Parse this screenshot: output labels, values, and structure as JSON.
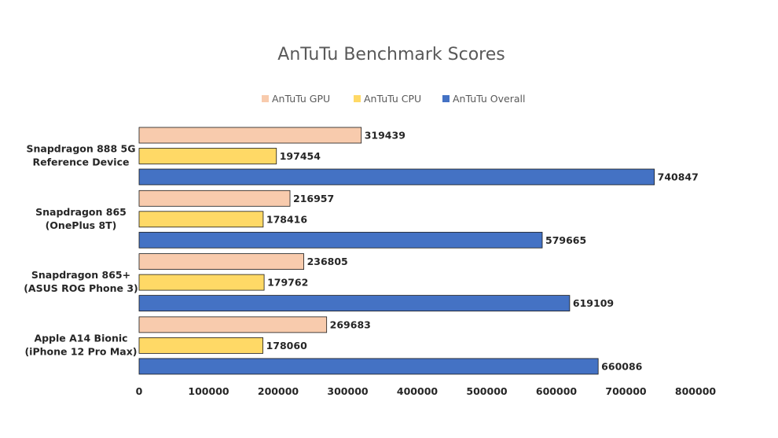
{
  "chart_data": {
    "type": "bar",
    "orientation": "horizontal",
    "title": "AnTuTu Benchmark Scores",
    "xlabel": "",
    "ylabel": "",
    "xlim": [
      0,
      800000
    ],
    "x_ticks": [
      "0",
      "100000",
      "200000",
      "300000",
      "400000",
      "500000",
      "600000",
      "700000",
      "800000"
    ],
    "grid": false,
    "legend_position": "top",
    "categories": [
      [
        "Snapdragon 888 5G",
        "Reference Device"
      ],
      [
        "Snapdragon 865",
        "(OnePlus 8T)"
      ],
      [
        "Snapdragon 865+",
        "(ASUS ROG Phone 3)"
      ],
      [
        "Apple A14 Bionic",
        "(iPhone 12 Pro Max)"
      ]
    ],
    "series": [
      {
        "name": "AnTuTu GPU",
        "color": "#F8CBAD",
        "values": [
          319439,
          216957,
          236805,
          269683
        ]
      },
      {
        "name": "AnTuTu CPU",
        "color": "#FFD966",
        "values": [
          197454,
          178416,
          179762,
          178060
        ]
      },
      {
        "name": "AnTuTu Overall",
        "color": "#4472C4",
        "values": [
          740847,
          579665,
          619109,
          660086
        ]
      }
    ]
  }
}
